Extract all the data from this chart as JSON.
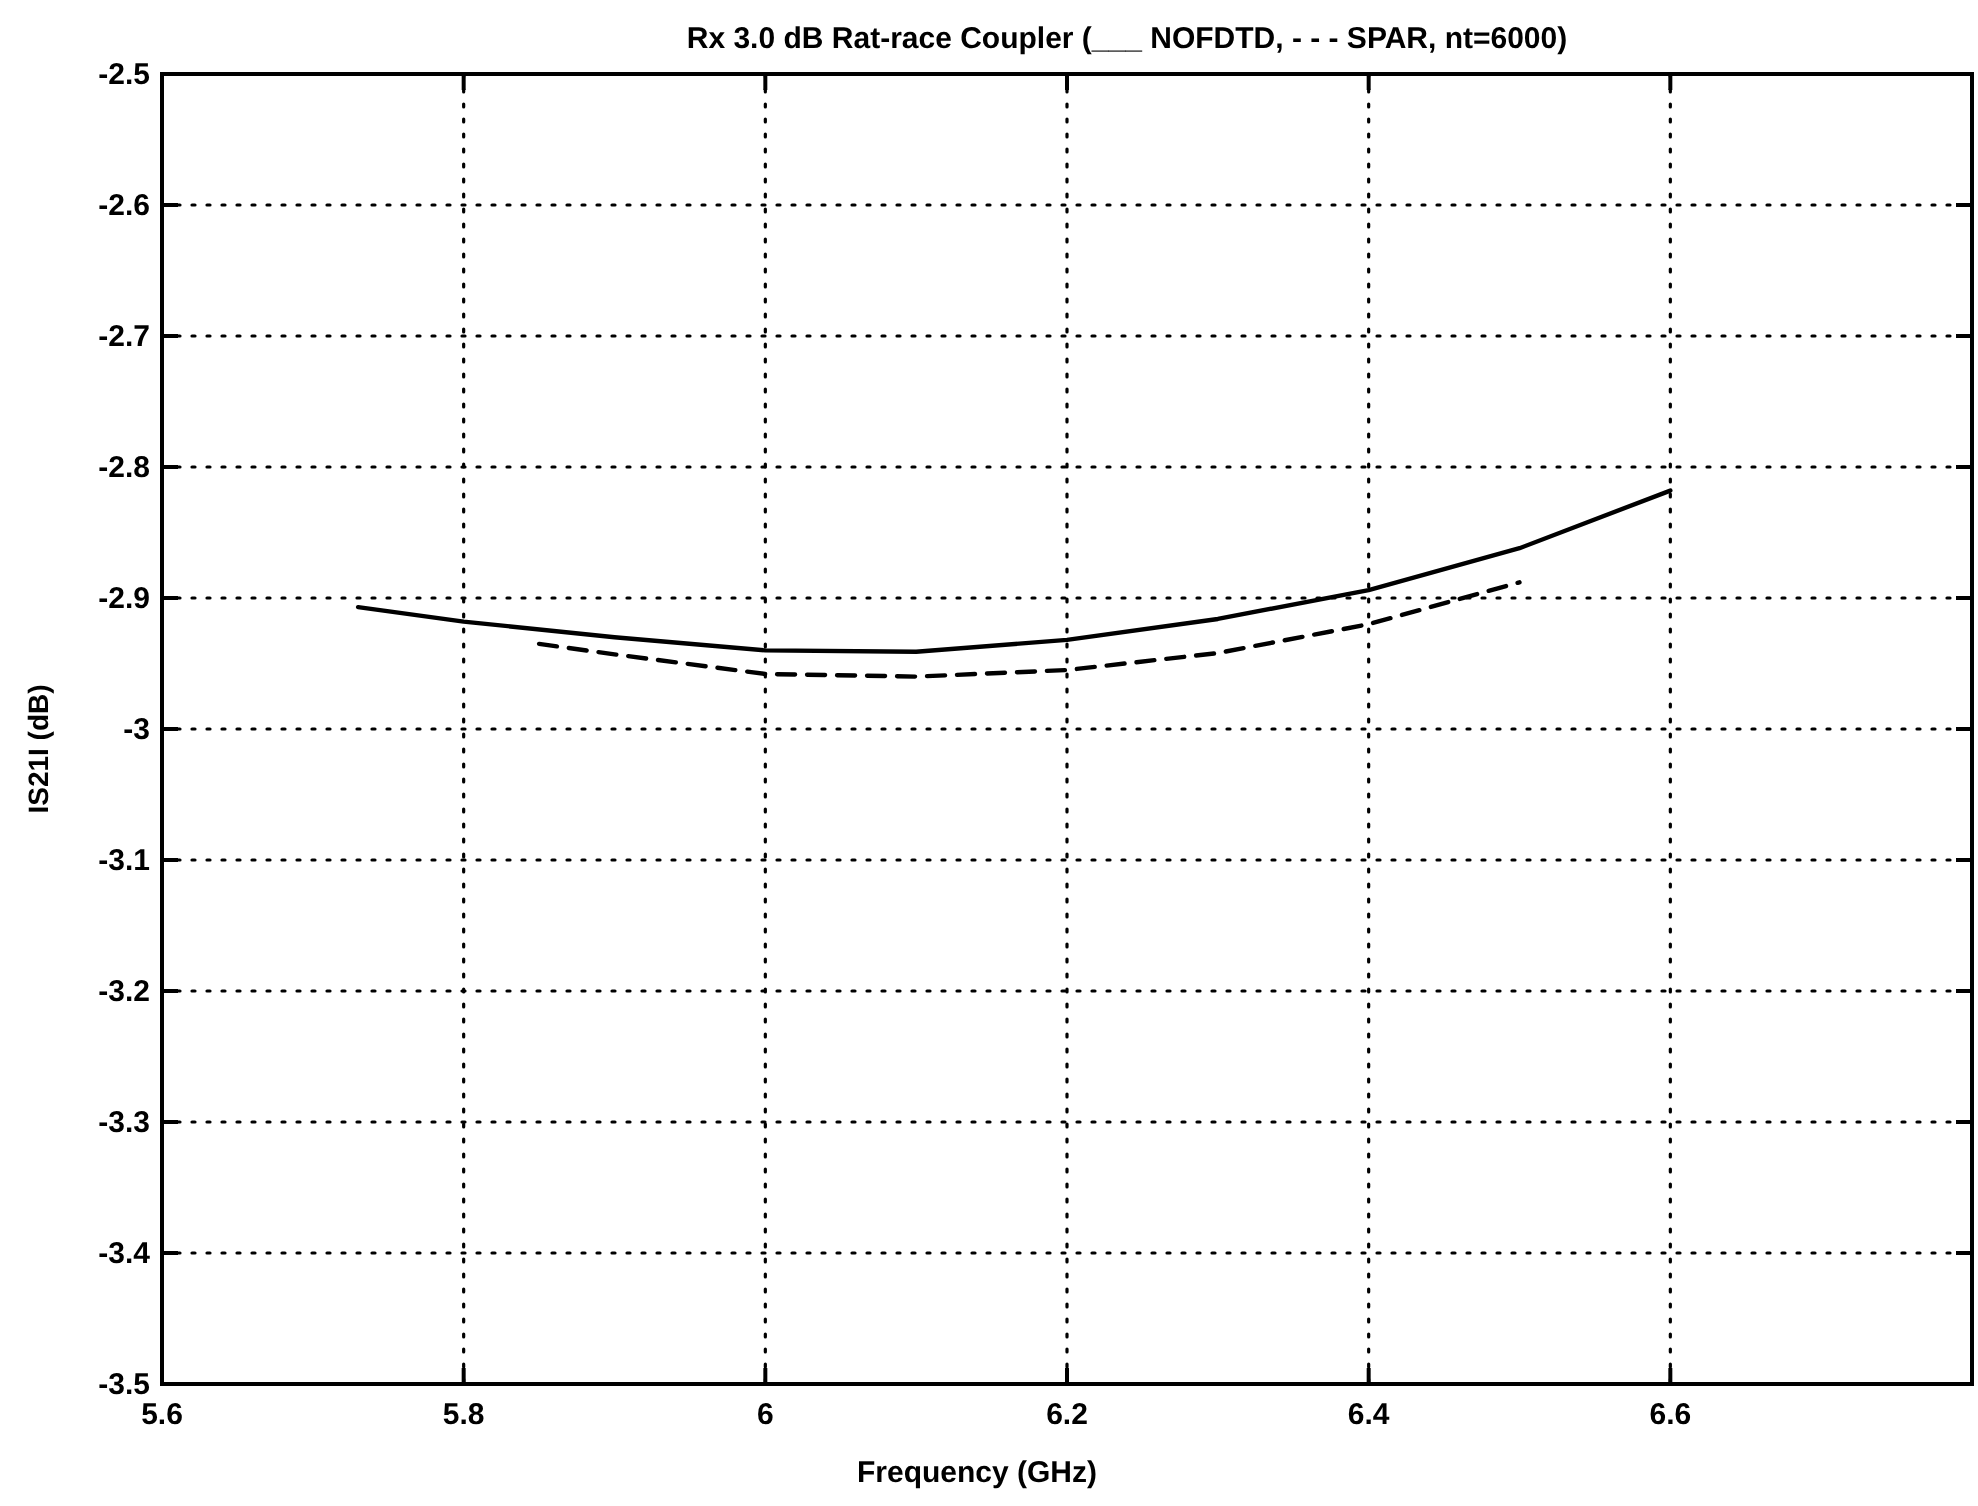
{
  "chart_data": {
    "type": "line",
    "title": "Rx 3.0 dB Rat-race Coupler (___ NOFDTD, - - - SPAR, nt=6000)",
    "xlabel": "Frequency (GHz)",
    "ylabel": "IS21I (dB)",
    "xlim": [
      5.6,
      6.8
    ],
    "xticks": [
      5.6,
      5.8,
      6,
      6.2,
      6.4,
      6.6
    ],
    "ylim": [
      -3.5,
      -2.5
    ],
    "yticks": [
      -3.5,
      -3.4,
      -3.3,
      -3.2,
      -3.1,
      -3,
      -2.9,
      -2.8,
      -2.7,
      -2.6,
      -2.5
    ],
    "grid": true,
    "marker": "none",
    "series": [
      {
        "color": "#000000",
        "line_style": "solid",
        "x": [
          5.73,
          5.8,
          5.9,
          6.0,
          6.1,
          6.2,
          6.3,
          6.4,
          6.5,
          6.6
        ],
        "values": [
          -2.907,
          -2.918,
          -2.93,
          -2.94,
          -2.941,
          -2.932,
          -2.916,
          -2.894,
          -2.862,
          -2.818
        ]
      },
      {
        "color": "#000000",
        "line_style": "dashed",
        "x": [
          5.85,
          5.9,
          6.0,
          6.1,
          6.2,
          6.3,
          6.4,
          6.5
        ],
        "values": [
          -2.935,
          -2.943,
          -2.958,
          -2.96,
          -2.955,
          -2.942,
          -2.92,
          -2.888
        ]
      }
    ]
  }
}
